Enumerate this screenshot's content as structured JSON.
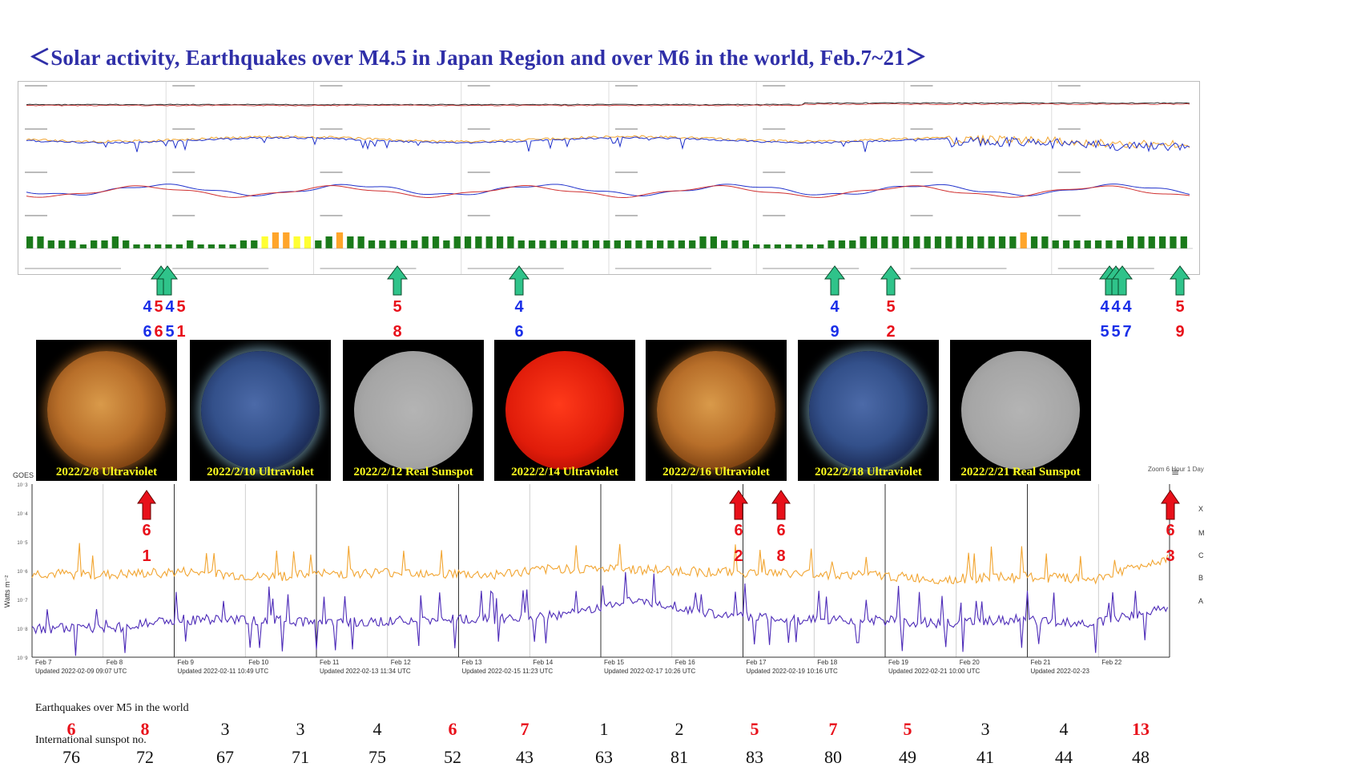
{
  "title": "＜Solar activity, Earthquakes over M4.5 in Japan Region and over M6 in the world,   Feb.7~21＞",
  "colors": {
    "title": "#2f2fa8",
    "japan_quake_blue": "#1a2fe8",
    "japan_quake_red": "#e8101a",
    "world_quake_arrow": "#e8101a",
    "japan_quake_arrow": "#2fc38a",
    "xray_long": "#f2a531",
    "xray_short": "#4d2bb8",
    "caption_yellow": "#ffff1e",
    "kp_green": "#1a7a1a",
    "kp_yellow": "#ffff33",
    "kp_orange": "#ffa52a"
  },
  "japan_quake_markers": [
    {
      "mag_digits": [
        {
          "d": "4",
          "c": "blue"
        },
        {
          "d": "5",
          "c": "red"
        },
        {
          "d": "4",
          "c": "blue"
        },
        {
          "d": "5",
          "c": "red"
        }
      ],
      "dec_digits": [
        {
          "d": "6",
          "c": "blue"
        },
        {
          "d": "6",
          "c": "red"
        },
        {
          "d": "5",
          "c": "blue"
        },
        {
          "d": "1",
          "c": "red"
        }
      ],
      "arrows": 2
    },
    {
      "mag_digits": [
        {
          "d": "5",
          "c": "red"
        }
      ],
      "dec_digits": [
        {
          "d": "8",
          "c": "red"
        }
      ],
      "arrows": 1
    },
    {
      "mag_digits": [
        {
          "d": "4",
          "c": "blue"
        }
      ],
      "dec_digits": [
        {
          "d": "6",
          "c": "blue"
        }
      ],
      "arrows": 1
    },
    {
      "mag_digits": [
        {
          "d": "4",
          "c": "blue"
        }
      ],
      "dec_digits": [
        {
          "d": "9",
          "c": "blue"
        }
      ],
      "arrows": 1
    },
    {
      "mag_digits": [
        {
          "d": "5",
          "c": "red"
        }
      ],
      "dec_digits": [
        {
          "d": "2",
          "c": "red"
        }
      ],
      "arrows": 1
    },
    {
      "mag_digits": [
        {
          "d": "4",
          "c": "blue"
        },
        {
          "d": "4",
          "c": "blue"
        },
        {
          "d": "4",
          "c": "blue"
        }
      ],
      "dec_digits": [
        {
          "d": "5",
          "c": "blue"
        },
        {
          "d": "5",
          "c": "blue"
        },
        {
          "d": "7",
          "c": "blue"
        }
      ],
      "arrows": 3
    },
    {
      "mag_digits": [
        {
          "d": "5",
          "c": "red"
        }
      ],
      "dec_digits": [
        {
          "d": "9",
          "c": "red"
        }
      ],
      "arrows": 1
    }
  ],
  "world_quake_markers": [
    {
      "mag": "6",
      "dec": "1"
    },
    {
      "mag": "6",
      "dec": "2"
    },
    {
      "mag": "6",
      "dec": "8"
    },
    {
      "mag": "6",
      "dec": "3"
    }
  ],
  "sun_images": [
    {
      "caption": "2022/2/8 Ultraviolet",
      "kind": "uv-gold"
    },
    {
      "caption": "2022/2/10 Ultraviolet",
      "kind": "uv-blue"
    },
    {
      "caption": "2022/2/12 Real Sunspot",
      "kind": "white"
    },
    {
      "caption": "2022/2/14 Ultraviolet",
      "kind": "uv-red"
    },
    {
      "caption": "2022/2/16 Ultraviolet",
      "kind": "uv-gold"
    },
    {
      "caption": "2022/2/18 Ultraviolet",
      "kind": "uv-blue"
    },
    {
      "caption": "2022/2/21 Real Sunspot",
      "kind": "white"
    }
  ],
  "goes": {
    "header": "GOES",
    "y_axis_label": "Watts m⁻²",
    "zoom_label": "Zoom  6 Hour  1 Day",
    "menu_icon": "≡",
    "flare_levels": [
      "X",
      "M",
      "C",
      "B",
      "A"
    ],
    "date_labels": [
      "Feb 7",
      "Feb 8",
      "Feb 9",
      "Feb 10",
      "Feb 11",
      "Feb 12",
      "Feb 13",
      "Feb 14",
      "Feb 15",
      "Feb 16",
      "Feb 17",
      "Feb 18",
      "Feb 19",
      "Feb 20",
      "Feb 21",
      "Feb 22"
    ],
    "updated_labels": [
      "Updated 2022-02-09 09:07 UTC",
      "Updated 2022-02-11 10:49 UTC",
      "Updated 2022-02-13 11:34 UTC",
      "Updated 2022-02-15 11:23 UTC",
      "Updated 2022-02-17 10:26 UTC",
      "Updated 2022-02-19 10:16 UTC",
      "Updated 2022-02-21 10:00 UTC",
      "Updated 2022-02-23"
    ]
  },
  "bottom_table": {
    "earthquakes_heading": "Earthquakes over M5 in the world",
    "sunspot_heading": "International sunspot no.",
    "earthquakes": [
      {
        "v": "6",
        "red": true
      },
      {
        "v": "8",
        "red": true
      },
      {
        "v": "3",
        "red": false
      },
      {
        "v": "3",
        "red": false
      },
      {
        "v": "4",
        "red": false
      },
      {
        "v": "6",
        "red": true
      },
      {
        "v": "7",
        "red": true
      },
      {
        "v": "1",
        "red": false
      },
      {
        "v": "2",
        "red": false
      },
      {
        "v": "5",
        "red": true
      },
      {
        "v": "7",
        "red": true
      },
      {
        "v": "5",
        "red": true
      },
      {
        "v": "3",
        "red": false
      },
      {
        "v": "4",
        "red": false
      },
      {
        "v": "13",
        "red": true
      }
    ],
    "sunspots": [
      "76",
      "72",
      "67",
      "71",
      "75",
      "52",
      "43",
      "63",
      "81",
      "83",
      "80",
      "49",
      "41",
      "44",
      "48"
    ]
  },
  "chart_data": [
    {
      "type": "bar",
      "title": "",
      "series": [
        {
          "name": "",
          "values": [
            3,
            3,
            2,
            2,
            2,
            1,
            2,
            2,
            3,
            2,
            1,
            1,
            1,
            1,
            1,
            2,
            1,
            1,
            1,
            1,
            2,
            2,
            3,
            4,
            4,
            3,
            3,
            2,
            3,
            4,
            3,
            3,
            2,
            2,
            2,
            2,
            2,
            3,
            3,
            2,
            3,
            3,
            3,
            3,
            3,
            3,
            2,
            2,
            2,
            2,
            2,
            2,
            2,
            2,
            2,
            2,
            2,
            2,
            2,
            2,
            2,
            2,
            2,
            3,
            3,
            2,
            2,
            2,
            1,
            1,
            1,
            1,
            1,
            1,
            1,
            2,
            2,
            2,
            3,
            3,
            3,
            3,
            3,
            3,
            3,
            3,
            3,
            3,
            3,
            3,
            3,
            3,
            3,
            4,
            3,
            3,
            2,
            2,
            2,
            2,
            2,
            2,
            2,
            3,
            3,
            3,
            3,
            3,
            3
          ]
        }
      ]
    },
    {
      "type": "line",
      "title": "",
      "x": [
        "Feb 7",
        "Feb 8",
        "Feb 9",
        "Feb 10",
        "Feb 11",
        "Feb 12",
        "Feb 13",
        "Feb 14",
        "Feb 15",
        "Feb 16",
        "Feb 17",
        "Feb 18",
        "Feb 19",
        "Feb 20",
        "Feb 21",
        "Feb 22"
      ],
      "ylim": [
        "1e-9",
        "1e-3"
      ],
      "log_y": true,
      "series": [
        {
          "name": "",
          "values": [
            "8e-7",
            "7e-7",
            "9e-7",
            "6e-7",
            "8e-7",
            "9e-7",
            "7e-7",
            "1.2e-6",
            "1.1e-6",
            "9e-7",
            "8e-7",
            "7e-7",
            "5e-7",
            "6e-7",
            "5e-7",
            "3e-6"
          ]
        },
        {
          "name": "",
          "values": [
            "1e-8",
            "1e-8",
            "2e-8",
            "2e-8",
            "1.5e-8",
            "2e-8",
            "2e-8",
            "3e-8",
            "1e-7",
            "3e-8",
            "2e-8",
            "2e-8",
            "1.5e-8",
            "2e-8",
            "1.5e-8",
            "5e-8"
          ]
        }
      ]
    }
  ]
}
